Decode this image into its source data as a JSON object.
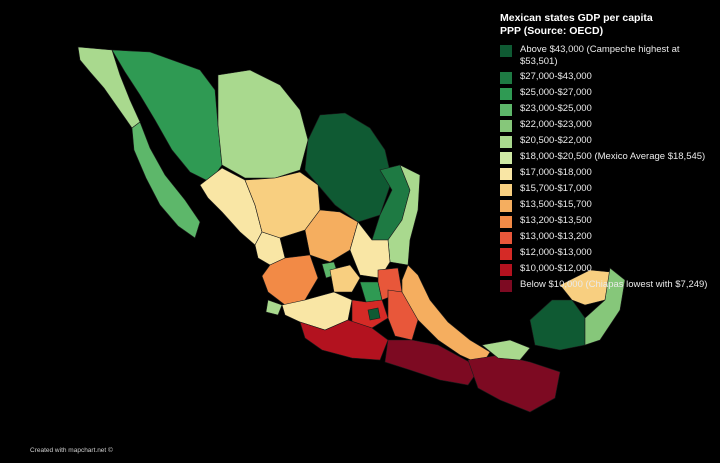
{
  "legend": {
    "title_line1": "Mexican states GDP per capita",
    "title_line2": "PPP (Source: OECD)",
    "items": [
      {
        "label": "Above $43,000 (Campeche highest at $53,501)",
        "color": "#0f5a33"
      },
      {
        "label": "$27,000-$43,000",
        "color": "#1e7a43"
      },
      {
        "label": "$25,000-$27,000",
        "color": "#2f9a53"
      },
      {
        "label": "$23,000-$25,000",
        "color": "#5db76a"
      },
      {
        "label": "$22,000-$23,000",
        "color": "#86c77a"
      },
      {
        "label": "$20,500-$22,000",
        "color": "#a9d98e"
      },
      {
        "label": "$18,000-$20,500 (Mexico Average $18,545)",
        "color": "#cfe9a4"
      },
      {
        "label": "$17,000-$18,000",
        "color": "#f9e6a5"
      },
      {
        "label": "$15,700-$17,000",
        "color": "#f8cf80"
      },
      {
        "label": "$13,500-$15,700",
        "color": "#f5ae5f"
      },
      {
        "label": "$13,200-$13,500",
        "color": "#f28a46"
      },
      {
        "label": "$13,000-$13,200",
        "color": "#e8573a"
      },
      {
        "label": "$12,000-$13,000",
        "color": "#d52a26"
      },
      {
        "label": "$10,000-$12,000",
        "color": "#b3121f"
      },
      {
        "label": "Below $10,000 (Chiapas lowest with $7,249)",
        "color": "#7d0a22"
      }
    ]
  },
  "credit": "Created with mapchart.net ©"
}
